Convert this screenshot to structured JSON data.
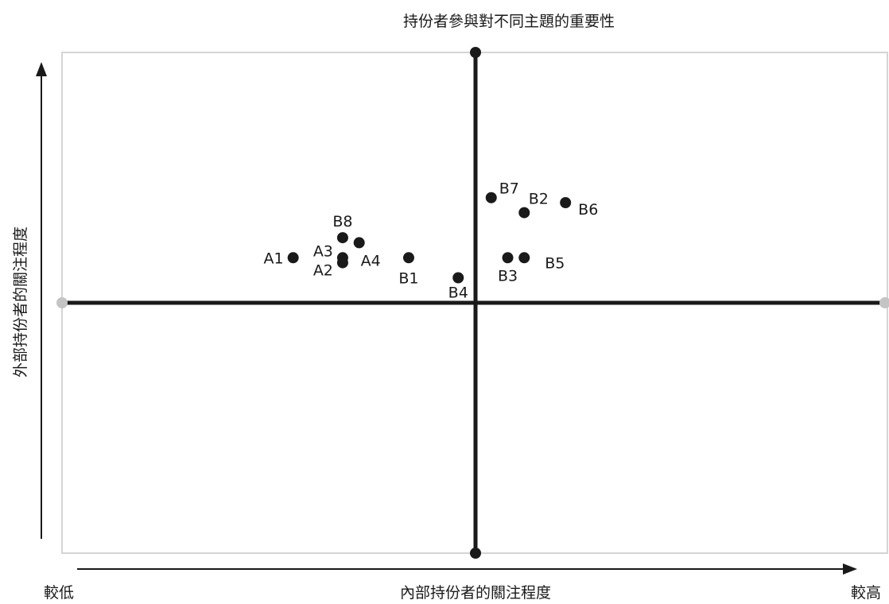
{
  "chart_data": {
    "type": "scatter",
    "title": "持份者參與對不同主題的重要性",
    "xlabel": "內部持份者的關注程度",
    "ylabel": "外部持份者的關注程度",
    "x_low_label": "較低",
    "x_high_label": "較高",
    "xlim": [
      0,
      10
    ],
    "ylim": [
      0,
      10
    ],
    "divider_x": 5,
    "divider_y": 5,
    "grid": false,
    "points": [
      {
        "label": "A1",
        "x": 2.8,
        "y": 5.9
      },
      {
        "label": "A2",
        "x": 3.4,
        "y": 5.8
      },
      {
        "label": "A3",
        "x": 3.4,
        "y": 5.9
      },
      {
        "label": "A4",
        "x": 3.6,
        "y": 6.2
      },
      {
        "label": "B1",
        "x": 4.2,
        "y": 5.9
      },
      {
        "label": "B2",
        "x": 5.6,
        "y": 6.8
      },
      {
        "label": "B3",
        "x": 5.4,
        "y": 5.9
      },
      {
        "label": "B4",
        "x": 4.8,
        "y": 5.5
      },
      {
        "label": "B5",
        "x": 5.6,
        "y": 5.9
      },
      {
        "label": "B6",
        "x": 6.1,
        "y": 7.0
      },
      {
        "label": "B7",
        "x": 5.2,
        "y": 7.1
      },
      {
        "label": "B8",
        "x": 3.4,
        "y": 6.3
      }
    ]
  }
}
